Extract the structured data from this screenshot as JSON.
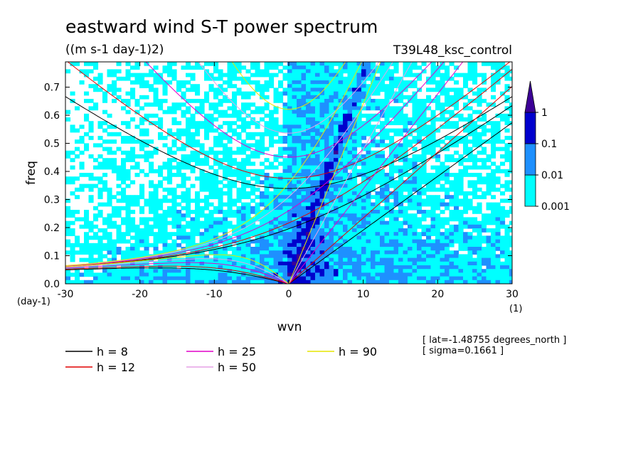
{
  "chart_data": {
    "type": "heatmap",
    "title": "eastward wind S-T power spectrum",
    "subtitle": "((m s-1 day-1)2)",
    "experiment_label": "T39L48_ksc_control",
    "xlabel": "wvn",
    "ylabel": "freq",
    "x_unit": "(1)",
    "y_unit": "(day-1)",
    "xlim": [
      -30,
      30
    ],
    "ylim": [
      0,
      0.79
    ],
    "x_ticks": [
      "-30",
      "-20",
      "-10",
      "0",
      "10",
      "20",
      "30"
    ],
    "x_tick_values": [
      -30,
      -20,
      -10,
      0,
      10,
      20,
      30
    ],
    "y_ticks": [
      "0.0",
      "0.1",
      "0.2",
      "0.3",
      "0.4",
      "0.5",
      "0.6",
      "0.7"
    ],
    "y_tick_values": [
      0,
      0.1,
      0.2,
      0.3,
      0.4,
      0.5,
      0.6,
      0.7
    ],
    "color_levels": [
      {
        "label": "0.001",
        "value": 0.001,
        "color": "#00ffff"
      },
      {
        "label": "0.01",
        "value": 0.01,
        "color": "#1e90ff"
      },
      {
        "label": "0.1",
        "value": 0.1,
        "color": "#0000cd"
      },
      {
        "label": "1",
        "value": 1,
        "color": "#3c0096"
      }
    ],
    "dispersion_curves": [
      {
        "name": "h =  8",
        "h": 8,
        "color": "#000000"
      },
      {
        "name": "h = 12",
        "h": 12,
        "color": "#e00000"
      },
      {
        "name": "h = 25",
        "h": 25,
        "color": "#e000c8"
      },
      {
        "name": "h = 50",
        "h": 50,
        "color": "#e6a0e6"
      },
      {
        "name": "h = 90",
        "h": 90,
        "color": "#e6e600"
      }
    ],
    "annotations": [
      "[ lat=-1.48755 degrees_north ]",
      "[ sigma=0.1661 ]"
    ],
    "grid": false,
    "legend_position": "bottom"
  }
}
